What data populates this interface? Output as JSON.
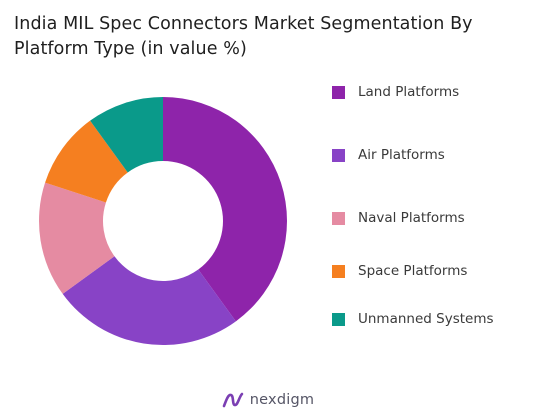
{
  "chart_data": {
    "type": "pie",
    "donut": true,
    "title": "India MIL Spec Connectors Market Segmentation By Platform Type (in value %)",
    "categories": [
      "Land Platforms",
      "Air Platforms",
      "Naval Platforms",
      "Space Platforms",
      "Unmanned Systems"
    ],
    "values": [
      40,
      25,
      15,
      10,
      10
    ],
    "colors": [
      "#8e24aa",
      "#8843c6",
      "#e58ba2",
      "#f57f20",
      "#0a9a8a"
    ],
    "legend_position": "right"
  },
  "branding": {
    "name": "nexdigm",
    "logo_icon": "nexdigm-logo-icon",
    "logo_color": "#7b3fb3"
  }
}
